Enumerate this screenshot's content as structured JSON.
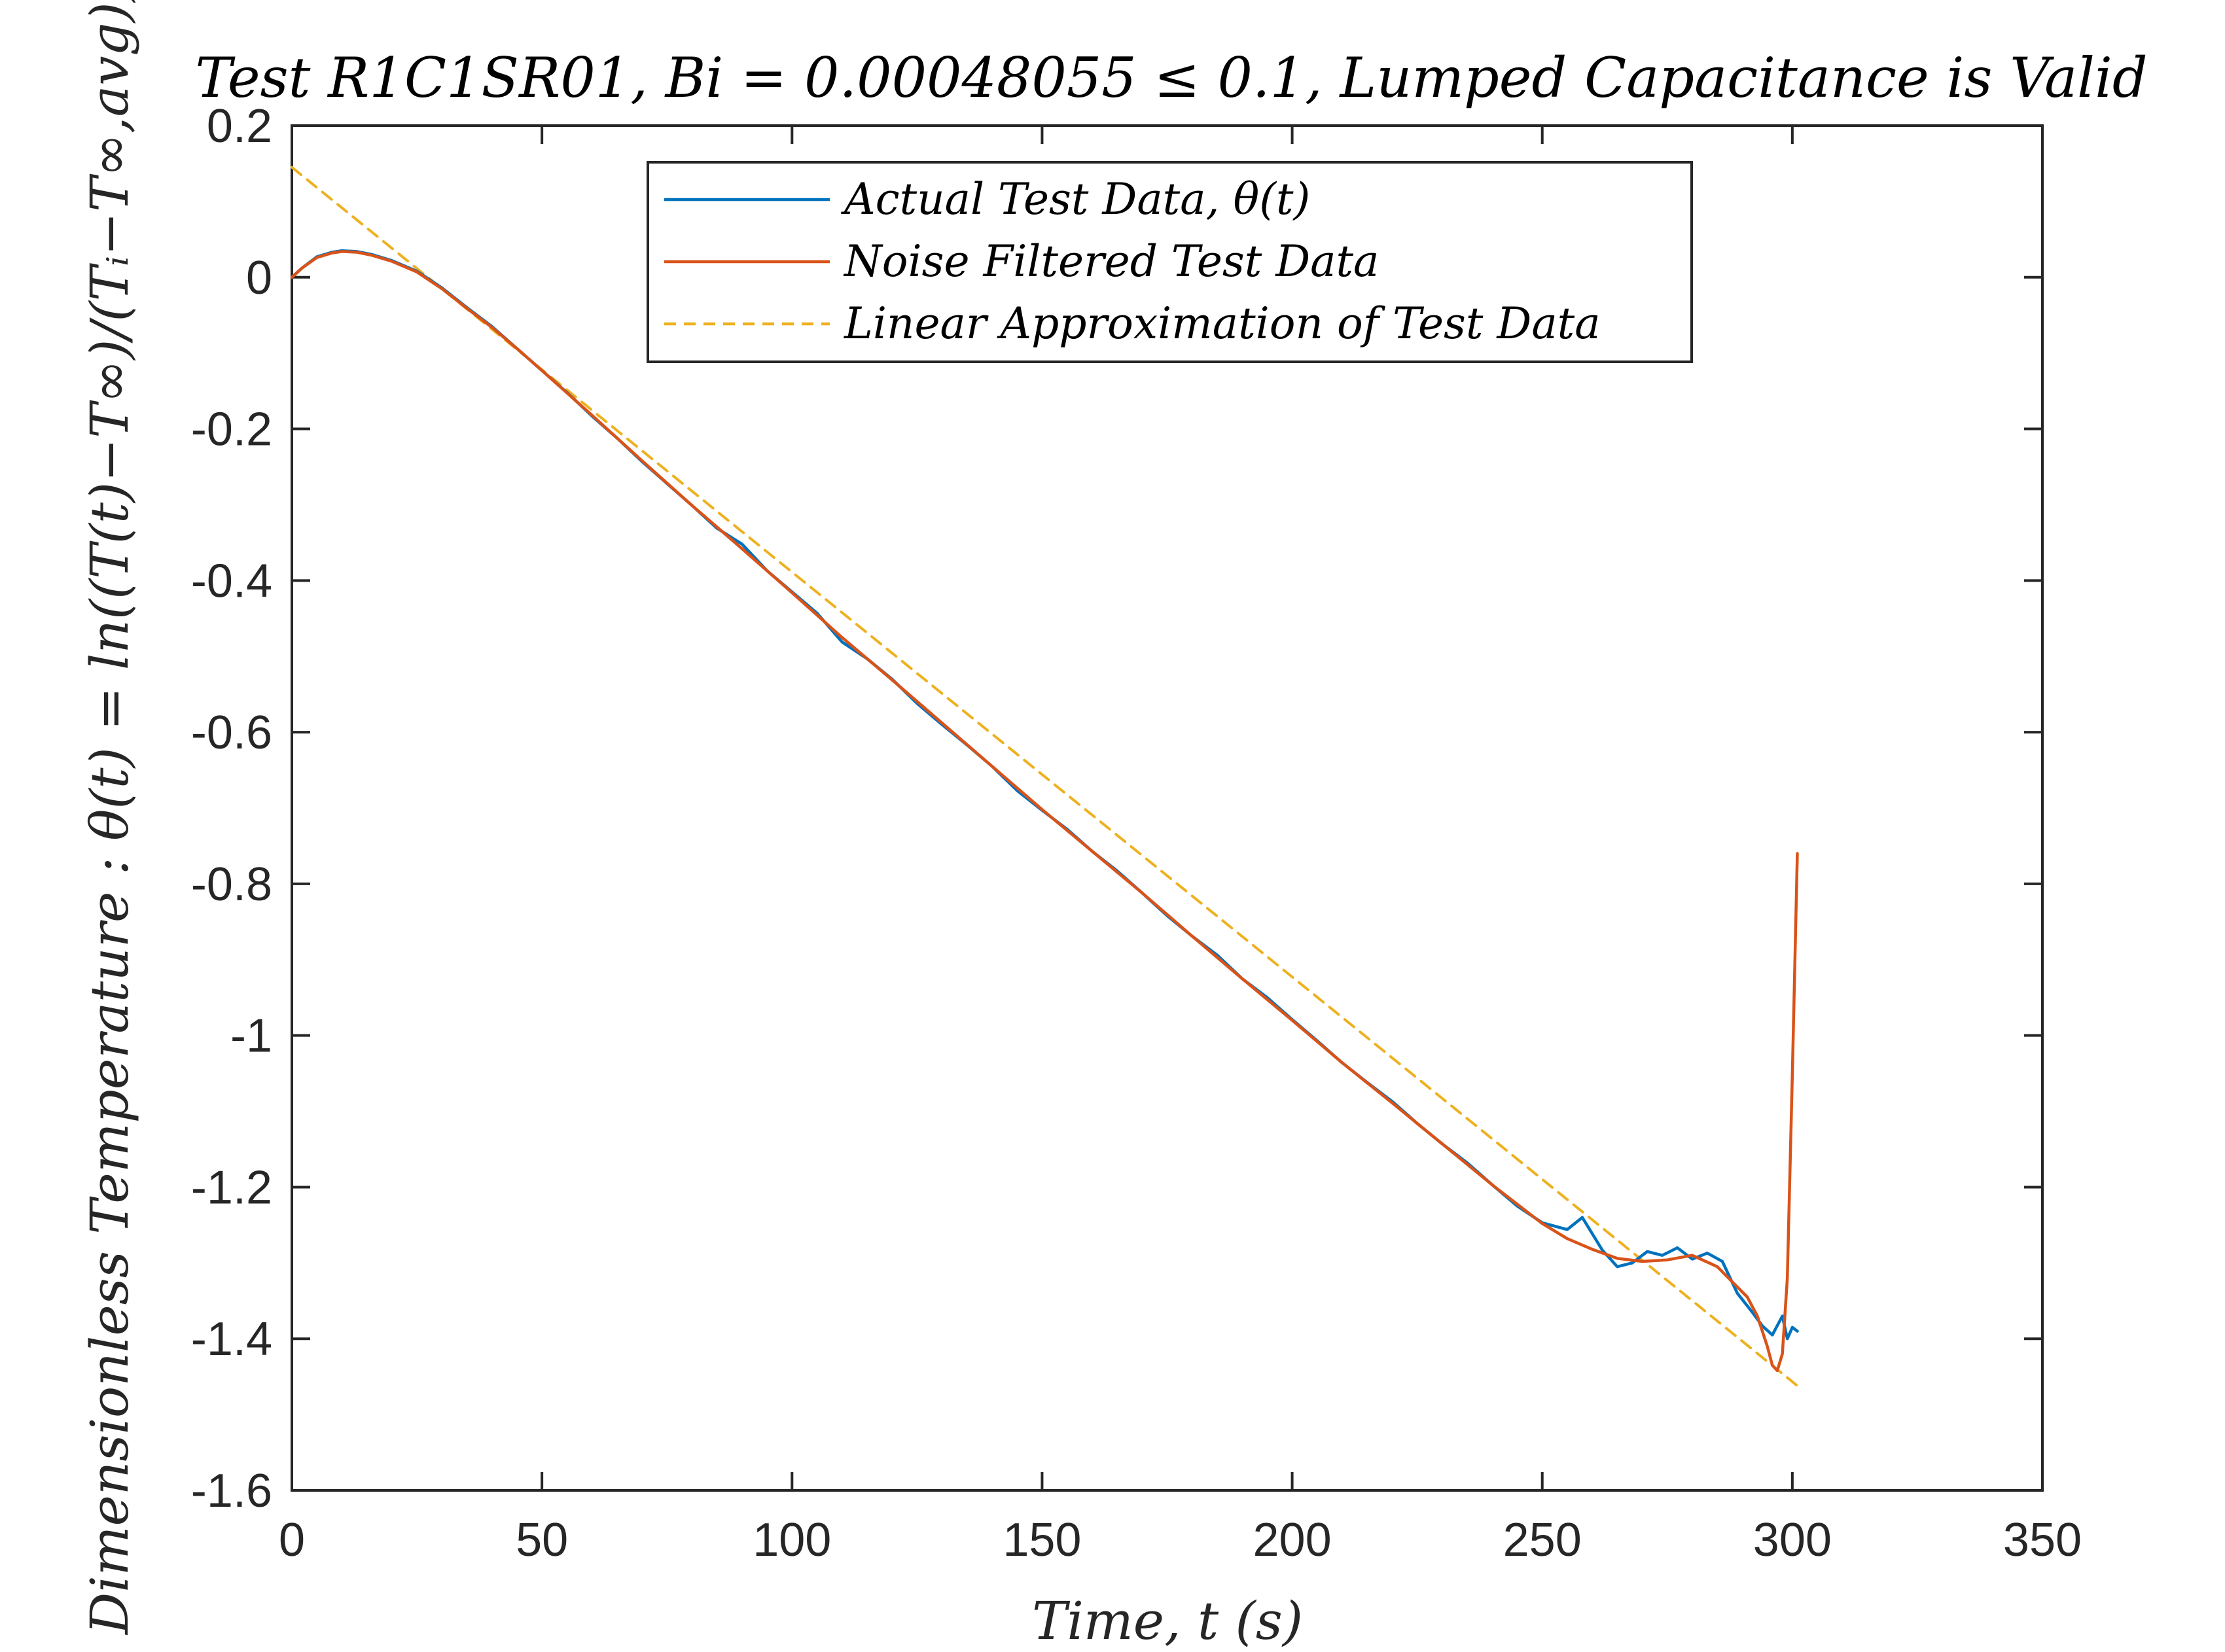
{
  "chart_data": {
    "type": "line",
    "title": "Test R1C1SR01,  Bi  =  0.00048055 ≤ 0.1,  Lumped Capacitance is Valid",
    "xlabel": "Time,  t (s)",
    "ylabel": "Dimensionless Temperature : θ(t) =  ln((T(t)−T∞)/(Tᵢ−T∞,avg))",
    "xlim": [
      0,
      350
    ],
    "ylim": [
      -1.6,
      0.2
    ],
    "xticks": [
      "0",
      "50",
      "100",
      "150",
      "200",
      "250",
      "300",
      "350"
    ],
    "yticks": [
      "0.2",
      "0",
      "-0.2",
      "-0.4",
      "-0.6",
      "-0.8",
      "-1",
      "-1.2",
      "-1.4",
      "-1.6"
    ],
    "grid": false,
    "legend_position": "top-center",
    "series": [
      {
        "name": "Actual Test Data, θ(t)",
        "color": "#0072BD",
        "style": "solid",
        "x": [
          0,
          2,
          5,
          8,
          10,
          13,
          16,
          20,
          25,
          30,
          35,
          40,
          45,
          50,
          55,
          60,
          65,
          70,
          75,
          80,
          85,
          90,
          95,
          100,
          105,
          110,
          115,
          120,
          125,
          130,
          135,
          140,
          145,
          150,
          155,
          160,
          165,
          170,
          175,
          180,
          185,
          190,
          195,
          200,
          205,
          210,
          215,
          220,
          225,
          230,
          235,
          240,
          245,
          250,
          255,
          258,
          262,
          265,
          268,
          271,
          274,
          277,
          280,
          283,
          286,
          289,
          292,
          294,
          296,
          298,
          299,
          300,
          301
        ],
        "y": [
          0.0,
          0.012,
          0.027,
          0.033,
          0.035,
          0.034,
          0.03,
          0.022,
          0.008,
          -0.014,
          -0.04,
          -0.065,
          -0.094,
          -0.123,
          -0.152,
          -0.183,
          -0.212,
          -0.243,
          -0.272,
          -0.301,
          -0.331,
          -0.352,
          -0.387,
          -0.415,
          -0.443,
          -0.481,
          -0.503,
          -0.53,
          -0.562,
          -0.59,
          -0.617,
          -0.645,
          -0.677,
          -0.703,
          -0.728,
          -0.757,
          -0.783,
          -0.812,
          -0.842,
          -0.869,
          -0.894,
          -0.925,
          -0.95,
          -0.979,
          -1.007,
          -1.036,
          -1.062,
          -1.087,
          -1.116,
          -1.143,
          -1.168,
          -1.197,
          -1.225,
          -1.247,
          -1.256,
          -1.24,
          -1.283,
          -1.305,
          -1.3,
          -1.285,
          -1.29,
          -1.28,
          -1.295,
          -1.287,
          -1.298,
          -1.34,
          -1.365,
          -1.383,
          -1.395,
          -1.37,
          -1.4,
          -1.385,
          -1.39
        ]
      },
      {
        "name": "Noise Filtered Test Data",
        "color": "#D95319",
        "style": "solid",
        "x": [
          0,
          2,
          5,
          8,
          10,
          13,
          16,
          20,
          25,
          30,
          35,
          40,
          45,
          50,
          60,
          70,
          80,
          90,
          100,
          110,
          120,
          130,
          140,
          150,
          160,
          170,
          180,
          190,
          200,
          210,
          220,
          230,
          240,
          250,
          255,
          260,
          265,
          270,
          275,
          280,
          285,
          288,
          291,
          293,
          295,
          296,
          297,
          298,
          299,
          300,
          301
        ],
        "y": [
          0.0,
          0.012,
          0.026,
          0.032,
          0.034,
          0.033,
          0.029,
          0.021,
          0.007,
          -0.015,
          -0.041,
          -0.066,
          -0.094,
          -0.123,
          -0.182,
          -0.242,
          -0.301,
          -0.358,
          -0.416,
          -0.475,
          -0.531,
          -0.588,
          -0.645,
          -0.702,
          -0.757,
          -0.812,
          -0.869,
          -0.925,
          -0.98,
          -1.036,
          -1.089,
          -1.143,
          -1.197,
          -1.248,
          -1.268,
          -1.282,
          -1.294,
          -1.298,
          -1.296,
          -1.29,
          -1.305,
          -1.325,
          -1.345,
          -1.37,
          -1.41,
          -1.435,
          -1.442,
          -1.42,
          -1.32,
          -1.05,
          -0.76
        ]
      },
      {
        "name": "Linear Approximation of Test Data",
        "color": "#EDB120",
        "style": "dashed",
        "x": [
          0,
          301
        ],
        "y": [
          0.145,
          -1.462
        ]
      }
    ]
  }
}
